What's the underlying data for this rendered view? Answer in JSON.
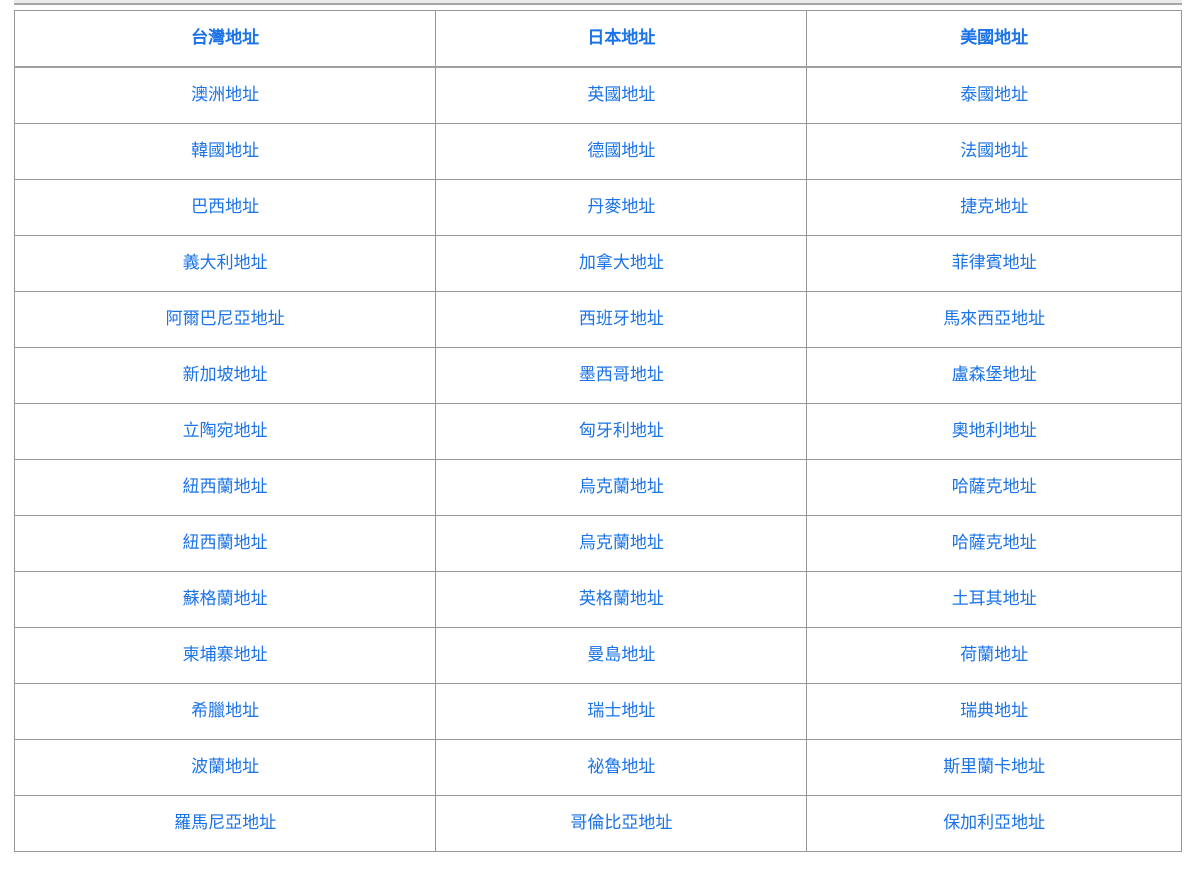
{
  "page": {
    "link_color": "#1a73e8",
    "border_inner_color": "#979797",
    "border_outer_color": "#5f5f5f",
    "top_strip_color": "#ebebeb"
  },
  "table": {
    "headers": [
      "台灣地址",
      "日本地址",
      "美國地址"
    ],
    "rows": [
      [
        "澳洲地址",
        "英國地址",
        "泰國地址"
      ],
      [
        "韓國地址",
        "德國地址",
        "法國地址"
      ],
      [
        "巴西地址",
        "丹麥地址",
        "捷克地址"
      ],
      [
        "義大利地址",
        "加拿大地址",
        "菲律賓地址"
      ],
      [
        "阿爾巴尼亞地址",
        "西班牙地址",
        "馬來西亞地址"
      ],
      [
        "新加坡地址",
        "墨西哥地址",
        "盧森堡地址"
      ],
      [
        "立陶宛地址",
        "匈牙利地址",
        "奧地利地址"
      ],
      [
        "紐西蘭地址",
        "烏克蘭地址",
        "哈薩克地址"
      ],
      [
        "紐西蘭地址",
        "烏克蘭地址",
        "哈薩克地址"
      ],
      [
        "蘇格蘭地址",
        "英格蘭地址",
        "土耳其地址"
      ],
      [
        "柬埔寨地址",
        "曼島地址",
        "荷蘭地址"
      ],
      [
        "希臘地址",
        "瑞士地址",
        "瑞典地址"
      ],
      [
        "波蘭地址",
        "祕魯地址",
        "斯里蘭卡地址"
      ],
      [
        "羅馬尼亞地址",
        "哥倫比亞地址",
        "保加利亞地址"
      ]
    ]
  }
}
